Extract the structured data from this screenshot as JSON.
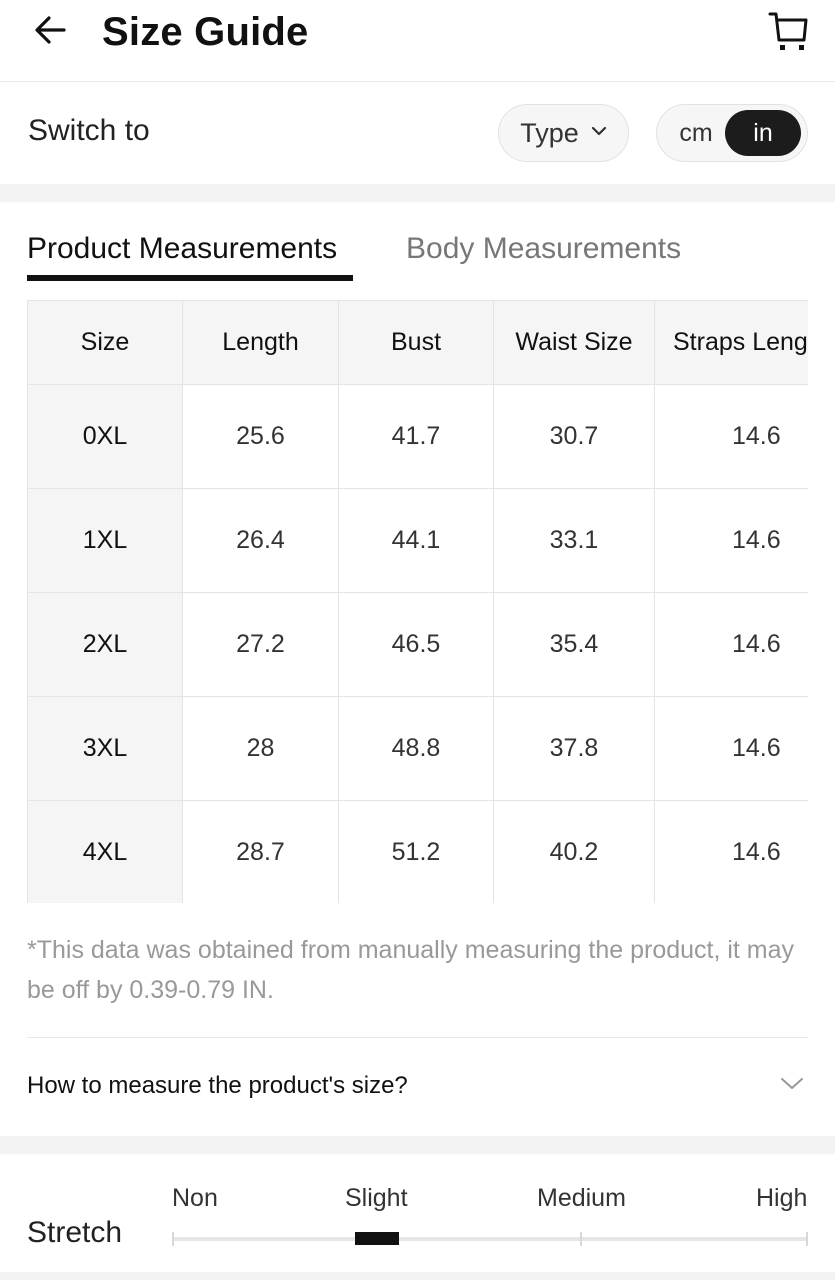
{
  "header": {
    "title": "Size Guide",
    "back_icon": "arrow-left-icon",
    "cart_icon": "shopping-cart-icon"
  },
  "switch_row": {
    "label": "Switch to",
    "type_button": "Type",
    "units": {
      "cm": "cm",
      "in": "in",
      "selected": "in"
    }
  },
  "tabs": {
    "product": "Product Measurements",
    "body": "Body Measurements",
    "active": "product"
  },
  "table": {
    "headers": [
      "Size",
      "Length",
      "Bust",
      "Waist Size",
      "Straps Length"
    ],
    "rows": [
      [
        "0XL",
        "25.6",
        "41.7",
        "30.7",
        "14.6"
      ],
      [
        "1XL",
        "26.4",
        "44.1",
        "33.1",
        "14.6"
      ],
      [
        "2XL",
        "27.2",
        "46.5",
        "35.4",
        "14.6"
      ],
      [
        "3XL",
        "28",
        "48.8",
        "37.8",
        "14.6"
      ],
      [
        "4XL",
        "28.7",
        "51.2",
        "40.2",
        "14.6"
      ]
    ]
  },
  "note": "*This data was obtained from manually measuring the product, it may be off by 0.39-0.79 IN.",
  "measure_link": "How to measure the product's size?",
  "stretch": {
    "label": "Stretch",
    "options": [
      "Non",
      "Slight",
      "Medium",
      "High"
    ],
    "selected": "Slight"
  },
  "colors": {
    "accent": "#111111",
    "muted_text": "#999999",
    "band": "#f3f3f3",
    "cell_header": "#f5f5f5"
  }
}
